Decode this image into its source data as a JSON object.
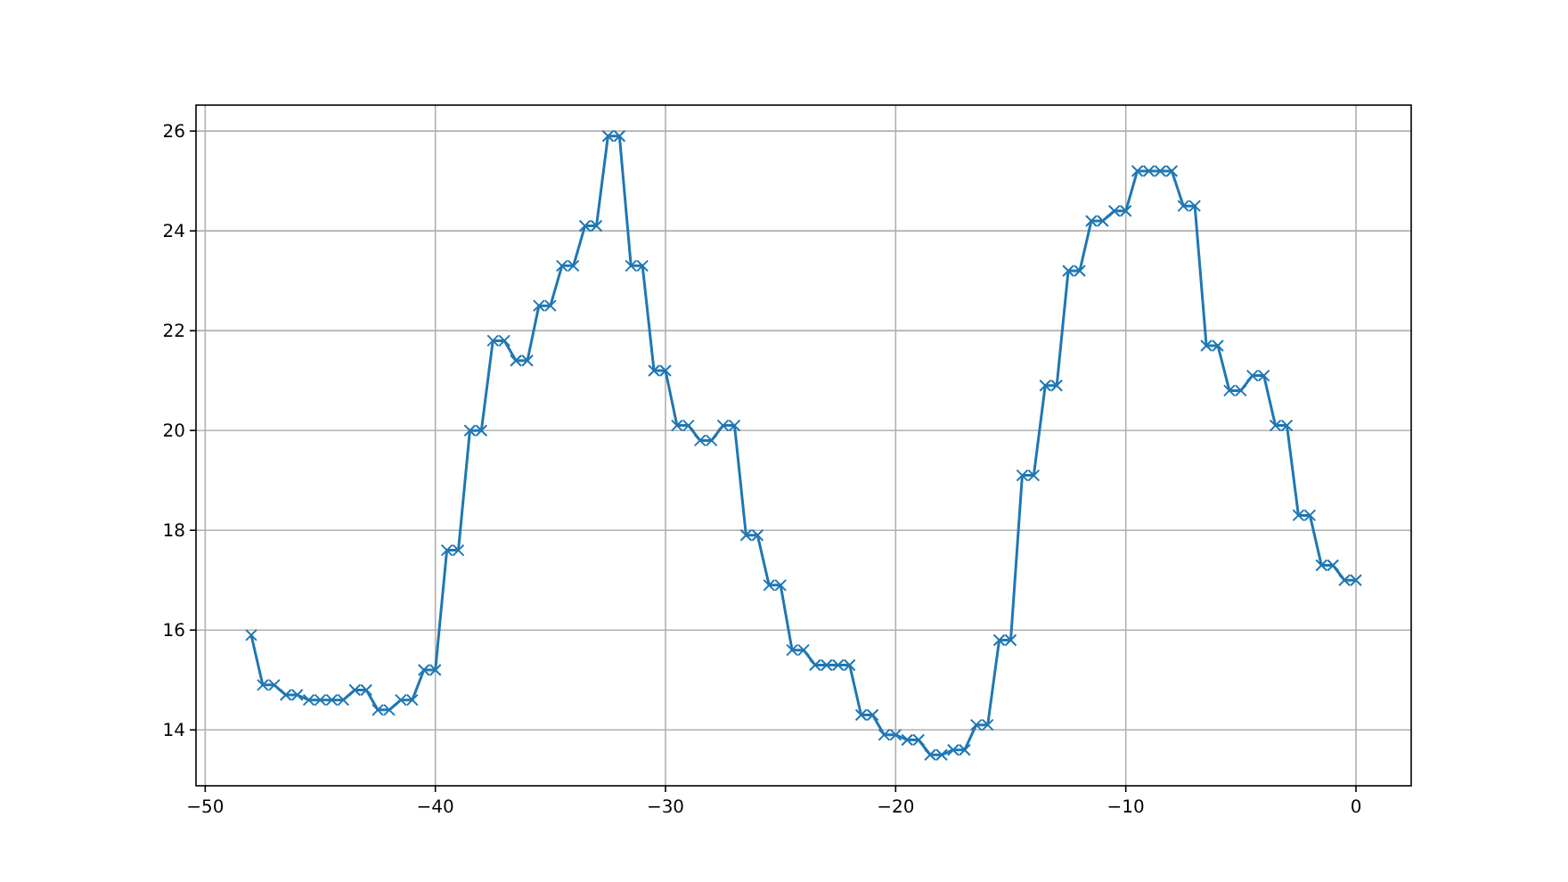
{
  "chart_data": {
    "type": "line",
    "marker": "cross",
    "grid": true,
    "line_style": "solid",
    "xlim": [
      -50.4,
      2.4
    ],
    "xticks": [
      {
        "value": -50,
        "label": "−50"
      },
      {
        "value": -40,
        "label": "−40"
      },
      {
        "value": -30,
        "label": "−30"
      },
      {
        "value": -20,
        "label": "−20"
      },
      {
        "value": -10,
        "label": "−10"
      },
      0
    ],
    "ylim": [
      12.88,
      26.52
    ],
    "yticks": [
      14,
      16,
      18,
      20,
      22,
      24,
      26
    ],
    "x": [
      -48,
      -47.5,
      -47,
      -46.5,
      -46,
      -45.5,
      -45,
      -44.5,
      -44,
      -43.5,
      -43,
      -42.5,
      -42,
      -41.5,
      -41,
      -40.5,
      -40,
      -39.5,
      -39,
      -38.5,
      -38,
      -37.5,
      -37,
      -36.5,
      -36,
      -35.5,
      -35,
      -34.5,
      -34,
      -33.5,
      -33,
      -32.5,
      -32,
      -31.5,
      -31,
      -30.5,
      -30,
      -29.5,
      -29,
      -28.5,
      -28,
      -27.5,
      -27,
      -26.5,
      -26,
      -25.5,
      -25,
      -24.5,
      -24,
      -23.5,
      -23,
      -22.5,
      -22,
      -21.5,
      -21,
      -20.5,
      -20,
      -19.5,
      -19,
      -18.5,
      -18,
      -17.5,
      -17,
      -16.5,
      -16,
      -15.5,
      -15,
      -14.5,
      -14,
      -13.5,
      -13,
      -12.5,
      -12,
      -11.5,
      -11,
      -10.5,
      -10,
      -9.5,
      -9,
      -8.5,
      -8,
      -7.5,
      -7,
      -6.5,
      -6,
      -5.5,
      -5,
      -4.5,
      -4,
      -3.5,
      -3,
      -2.5,
      -2,
      -1.5,
      -1,
      -0.5,
      0
    ],
    "series": [
      {
        "color": "#1f77b4",
        "values": [
          15.9,
          14.9,
          14.9,
          14.7,
          14.7,
          14.6,
          14.6,
          14.6,
          14.6,
          14.8,
          14.8,
          14.4,
          14.4,
          14.6,
          14.6,
          15.2,
          15.2,
          17.6,
          17.6,
          20.0,
          20.0,
          21.8,
          21.8,
          21.4,
          21.4,
          22.5,
          22.5,
          23.3,
          23.3,
          24.1,
          24.1,
          25.9,
          25.9,
          23.3,
          23.3,
          21.2,
          21.2,
          20.1,
          20.1,
          19.8,
          19.8,
          20.1,
          20.1,
          17.9,
          17.9,
          16.9,
          16.9,
          15.6,
          15.6,
          15.3,
          15.3,
          15.3,
          15.3,
          14.3,
          14.3,
          13.9,
          13.9,
          13.8,
          13.8,
          13.5,
          13.5,
          13.6,
          13.6,
          14.1,
          14.1,
          15.8,
          15.8,
          19.1,
          19.1,
          20.9,
          20.9,
          23.2,
          23.2,
          24.2,
          24.2,
          24.4,
          24.4,
          25.2,
          25.2,
          25.2,
          25.2,
          24.5,
          24.5,
          21.7,
          21.7,
          20.8,
          20.8,
          21.1,
          21.1,
          20.1,
          20.1,
          18.3,
          18.3,
          17.3,
          17.3,
          17.0,
          17.0
        ]
      }
    ]
  }
}
